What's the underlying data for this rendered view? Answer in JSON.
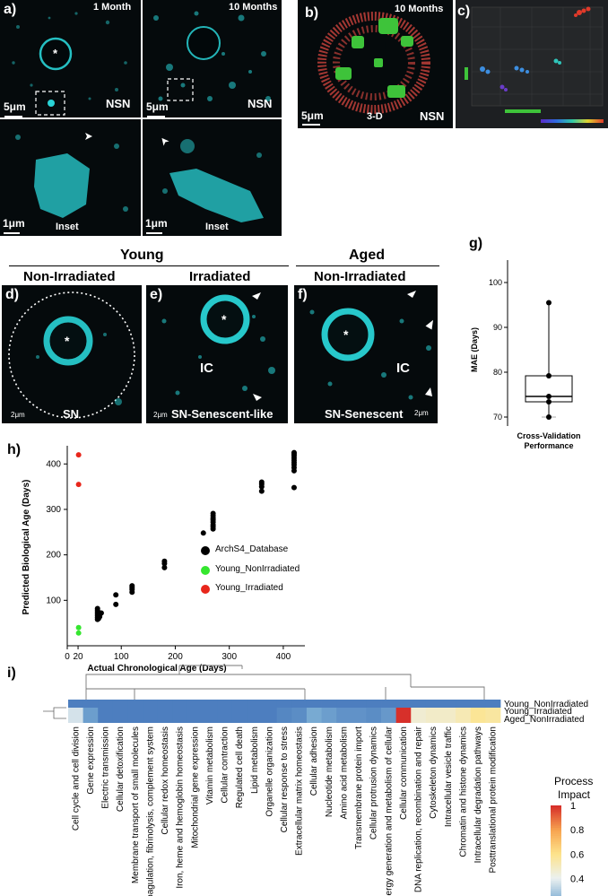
{
  "panel_a": {
    "label": "a)",
    "tl_time": "1 Month",
    "tr_time": "10 Months",
    "tl_tag": "NSN",
    "tr_tag": "NSN",
    "tl_scale": "5μm",
    "tr_scale": "5μm",
    "bl_scale": "1μm",
    "br_scale": "1μm",
    "bl_inset": "Inset",
    "br_inset": "Inset",
    "star": "*"
  },
  "panel_b": {
    "label": "b)",
    "time": "10 Months",
    "mode": "3-D",
    "tag": "NSN",
    "scale": "5μm"
  },
  "panel_c": {
    "label": "c)"
  },
  "row2": {
    "young": "Young",
    "aged": "Aged",
    "non_irr_1": "Non-Irradiated",
    "irr": "Irradiated",
    "non_irr_2": "Non-Irradiated"
  },
  "panel_d": {
    "label": "d)",
    "caption": "SN",
    "scale": "2μm",
    "star": "*"
  },
  "panel_e": {
    "label": "e)",
    "caption": "SN-Senescent-like",
    "ic": "IC",
    "scale": "2μm",
    "star": "*"
  },
  "panel_f": {
    "label": "f)",
    "caption": "SN-Senescent",
    "ic": "IC",
    "scale": "2μm",
    "star": "*"
  },
  "panel_g": {
    "label": "g)",
    "ylabel": "MAE (Days)",
    "xlabel_1": "Cross-Validation",
    "xlabel_2": "Performance",
    "yticks": [
      "70",
      "80",
      "90",
      "100"
    ]
  },
  "panel_h": {
    "label": "h)",
    "xlabel": "Actual Chronological Age (Days)",
    "ylabel": "Predicted Biological Age (Days)",
    "xticks": [
      "0",
      "20",
      "100",
      "200",
      "300",
      "400"
    ],
    "yticks": [
      "100",
      "200",
      "300",
      "400"
    ],
    "legend": [
      "ArchS4_Database",
      "Young_NonIrradiated",
      "Young_Irradiated"
    ]
  },
  "panel_i": {
    "label": "i)",
    "legend_title_1": "Process",
    "legend_title_2": "Impact",
    "legend_ticks": [
      "1",
      "0.8",
      "0.6",
      "0.4",
      "0.2",
      "0"
    ]
  },
  "colors": {
    "cyan": "#29d3d6",
    "archs4": "#000000",
    "young_nonirr": "#35e62f",
    "young_irr": "#e8261b",
    "heat_low": "#3e6fb8",
    "heat_high": "#d7302a"
  },
  "chart_data": [
    {
      "type": "box",
      "title": "",
      "xlabel": "Cross-Validation Performance",
      "ylabel": "MAE (Days)",
      "ylim": [
        68,
        105
      ],
      "box": {
        "min": 70,
        "q1": 73.4,
        "median": 74.6,
        "q3": 79.2,
        "max": 95.5
      },
      "points": [
        95.5,
        79.2,
        74.6,
        73.4,
        70.0
      ]
    },
    {
      "type": "scatter",
      "title": "",
      "xlabel": "Actual Chronological Age (Days)",
      "ylabel": "Predicted Biological Age (Days)",
      "xlim": [
        0,
        440
      ],
      "ylim": [
        0,
        440
      ],
      "series": [
        {
          "name": "ArchS4_Database",
          "points": [
            [
              56,
              58
            ],
            [
              56,
              62
            ],
            [
              56,
              66
            ],
            [
              56,
              70
            ],
            [
              56,
              74
            ],
            [
              56,
              78
            ],
            [
              56,
              82
            ],
            [
              58,
              60
            ],
            [
              58,
              68
            ],
            [
              60,
              64
            ],
            [
              60,
              72
            ],
            [
              63,
              72
            ],
            [
              90,
              91
            ],
            [
              90,
              112
            ],
            [
              120,
              118
            ],
            [
              120,
              124
            ],
            [
              120,
              128
            ],
            [
              120,
              132
            ],
            [
              180,
              172
            ],
            [
              180,
              181
            ],
            [
              180,
              186
            ],
            [
              252,
              248
            ],
            [
              270,
              257
            ],
            [
              270,
              262
            ],
            [
              270,
              266
            ],
            [
              270,
              272
            ],
            [
              270,
              277
            ],
            [
              270,
              281
            ],
            [
              270,
              286
            ],
            [
              270,
              291
            ],
            [
              360,
              340
            ],
            [
              360,
              350
            ],
            [
              360,
              356
            ],
            [
              360,
              360
            ],
            [
              420,
              348
            ],
            [
              420,
              385
            ],
            [
              420,
              392
            ],
            [
              420,
              398
            ],
            [
              420,
              403
            ],
            [
              420,
              408
            ],
            [
              420,
              413
            ],
            [
              420,
              418
            ],
            [
              420,
              422
            ],
            [
              420,
              425
            ]
          ]
        },
        {
          "name": "Young_NonIrradiated",
          "points": [
            [
              21,
              40
            ],
            [
              21,
              28
            ]
          ]
        },
        {
          "name": "Young_Irradiated",
          "points": [
            [
              21,
              420
            ],
            [
              21,
              355
            ]
          ]
        }
      ]
    },
    {
      "type": "heatmap",
      "title": "",
      "rows": [
        "Young_NonIrradiated",
        "Young_Irradiated",
        "Aged_NonIrradiated"
      ],
      "columns": [
        "Cell cycle and cell division",
        "Gene expression",
        "Electric transmission",
        "Cellular detoxification",
        "Membrane transport of small molecules",
        "Coagulation, fibrinolysis, complement system",
        "Cellular redox homeostasis",
        "Iron, heme and hemoglobin homeostasis",
        "Mitochondrial gene expression",
        "Vitamin metabolism",
        "Cellular contraction",
        "Regulated cell death",
        "Lipid metabolism",
        "Organelle organization",
        "Cellular response to stress",
        "Extracellular matrix homeostasis",
        "Cellular adhesion",
        "Nucleotide metabolism",
        "Amino acid metabolism",
        "Transmembrane protein import",
        "Cellular protrusion dynamics",
        "Energy generation and metabolism of cellular",
        "Cellular communication",
        "DNA replication, recombination and repair",
        "Cytoskeleton dynamics",
        "Intracellular vesicle traffic",
        "Chromatin and histone dynamics",
        "Intracellular degradation pathways",
        "Posttranslational protein modification"
      ],
      "values": [
        [
          0.05,
          0.05,
          0.05,
          0.05,
          0.05,
          0.05,
          0.05,
          0.05,
          0.05,
          0.05,
          0.05,
          0.05,
          0.05,
          0.05,
          0.05,
          0.05,
          0.05,
          0.05,
          0.05,
          0.05,
          0.05,
          0.05,
          0.05,
          0.05,
          0.05,
          0.05,
          0.05,
          0.05,
          0.05
        ],
        [
          0.36,
          0.16,
          0.05,
          0.05,
          0.05,
          0.05,
          0.05,
          0.05,
          0.05,
          0.05,
          0.05,
          0.05,
          0.05,
          0.05,
          0.08,
          0.1,
          0.2,
          0.16,
          0.12,
          0.12,
          0.1,
          0.14,
          1.0,
          0.46,
          0.48,
          0.48,
          0.52,
          0.58,
          0.56
        ],
        [
          0.36,
          0.16,
          0.05,
          0.05,
          0.05,
          0.05,
          0.05,
          0.05,
          0.05,
          0.05,
          0.05,
          0.05,
          0.05,
          0.05,
          0.08,
          0.1,
          0.2,
          0.16,
          0.12,
          0.12,
          0.1,
          0.14,
          1.0,
          0.46,
          0.48,
          0.48,
          0.52,
          0.58,
          0.56
        ]
      ],
      "colorbar": {
        "title": "Process Impact",
        "range": [
          0,
          1
        ]
      }
    }
  ]
}
